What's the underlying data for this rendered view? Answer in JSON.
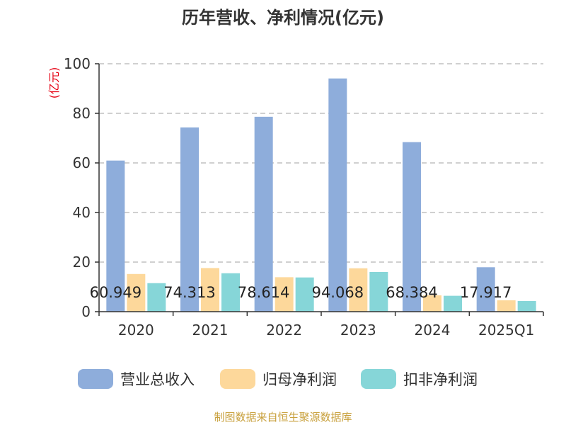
{
  "chart_data": {
    "type": "bar",
    "title": "历年营收、净利情况(亿元)",
    "ylabel": "(亿元)",
    "xlabel": "",
    "categories": [
      "2020",
      "2021",
      "2022",
      "2023",
      "2024",
      "2025Q1"
    ],
    "ylim": [
      0,
      100
    ],
    "yticks": [
      "0",
      "20",
      "40",
      "60",
      "80",
      "100"
    ],
    "grid": true,
    "legend_position": "bottom",
    "series": [
      {
        "name": "营业总收入",
        "color": "#8eaddb",
        "values": [
          60.949,
          74.313,
          78.614,
          94.068,
          68.384,
          17.917
        ],
        "labels": [
          "60.949",
          "74.313",
          "78.614",
          "94.068",
          "68.384",
          "17.917"
        ]
      },
      {
        "name": "归母净利润",
        "color": "#fdd89b",
        "values": [
          15.2,
          17.6,
          13.9,
          17.5,
          6.6,
          4.6
        ]
      },
      {
        "name": "扣非净利润",
        "color": "#86d6d8",
        "values": [
          11.5,
          15.5,
          13.8,
          16.0,
          6.4,
          4.3
        ]
      }
    ],
    "source": "制图数据来自恒生聚源数据库"
  }
}
